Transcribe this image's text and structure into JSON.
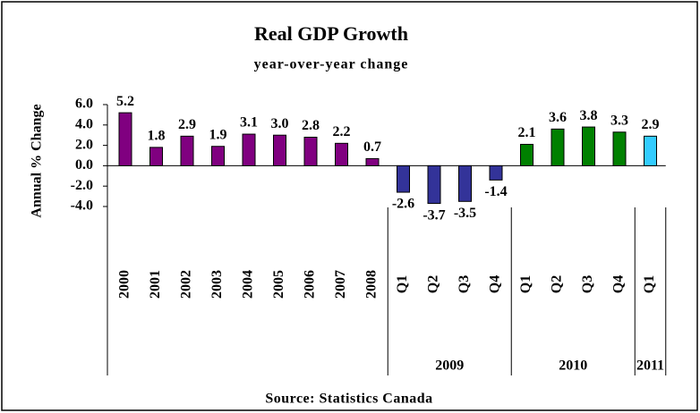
{
  "chart_data": {
    "type": "bar",
    "title": "Real GDP Growth",
    "subtitle": "year-over-year change",
    "y_label": "Annual % Change",
    "source": "Source: Statistics Canada",
    "ylim": [
      -4,
      6
    ],
    "yticks": [
      {
        "value": 6,
        "label": "6.0"
      },
      {
        "value": 4,
        "label": "4.0"
      },
      {
        "value": 2,
        "label": "2.0"
      },
      {
        "value": 0,
        "label": "0.0"
      },
      {
        "value": -2,
        "label": "-2.0"
      },
      {
        "value": -4,
        "label": "-4.0"
      }
    ],
    "groups": [
      {
        "name": null,
        "color": "#800080",
        "categories": [
          "2000",
          "2001",
          "2002",
          "2003",
          "2004",
          "2005",
          "2006",
          "2007",
          "2008"
        ],
        "values": [
          5.2,
          1.8,
          2.9,
          1.9,
          3.1,
          3.0,
          2.8,
          2.2,
          0.7
        ],
        "value_labels": [
          "5.2",
          "1.8",
          "2.9",
          "1.9",
          "3.1",
          "3.0",
          "2.8",
          "2.2",
          "0.7"
        ]
      },
      {
        "name": "2009",
        "color": "#333399",
        "categories": [
          "Q1",
          "Q2",
          "Q3",
          "Q4"
        ],
        "values": [
          -2.6,
          -3.7,
          -3.5,
          -1.4
        ],
        "value_labels": [
          "-2.6",
          "-3.7",
          "-3.5",
          "-1.4"
        ]
      },
      {
        "name": "2010",
        "color": "#008000",
        "categories": [
          "Q1",
          "Q2",
          "Q3",
          "Q4"
        ],
        "values": [
          2.1,
          3.6,
          3.8,
          3.3
        ],
        "value_labels": [
          "2.1",
          "3.6",
          "3.8",
          "3.3"
        ]
      },
      {
        "name": "2011",
        "color": "#33ccff",
        "categories": [
          "Q1"
        ],
        "values": [
          2.9
        ],
        "value_labels": [
          "2.9"
        ]
      }
    ]
  }
}
